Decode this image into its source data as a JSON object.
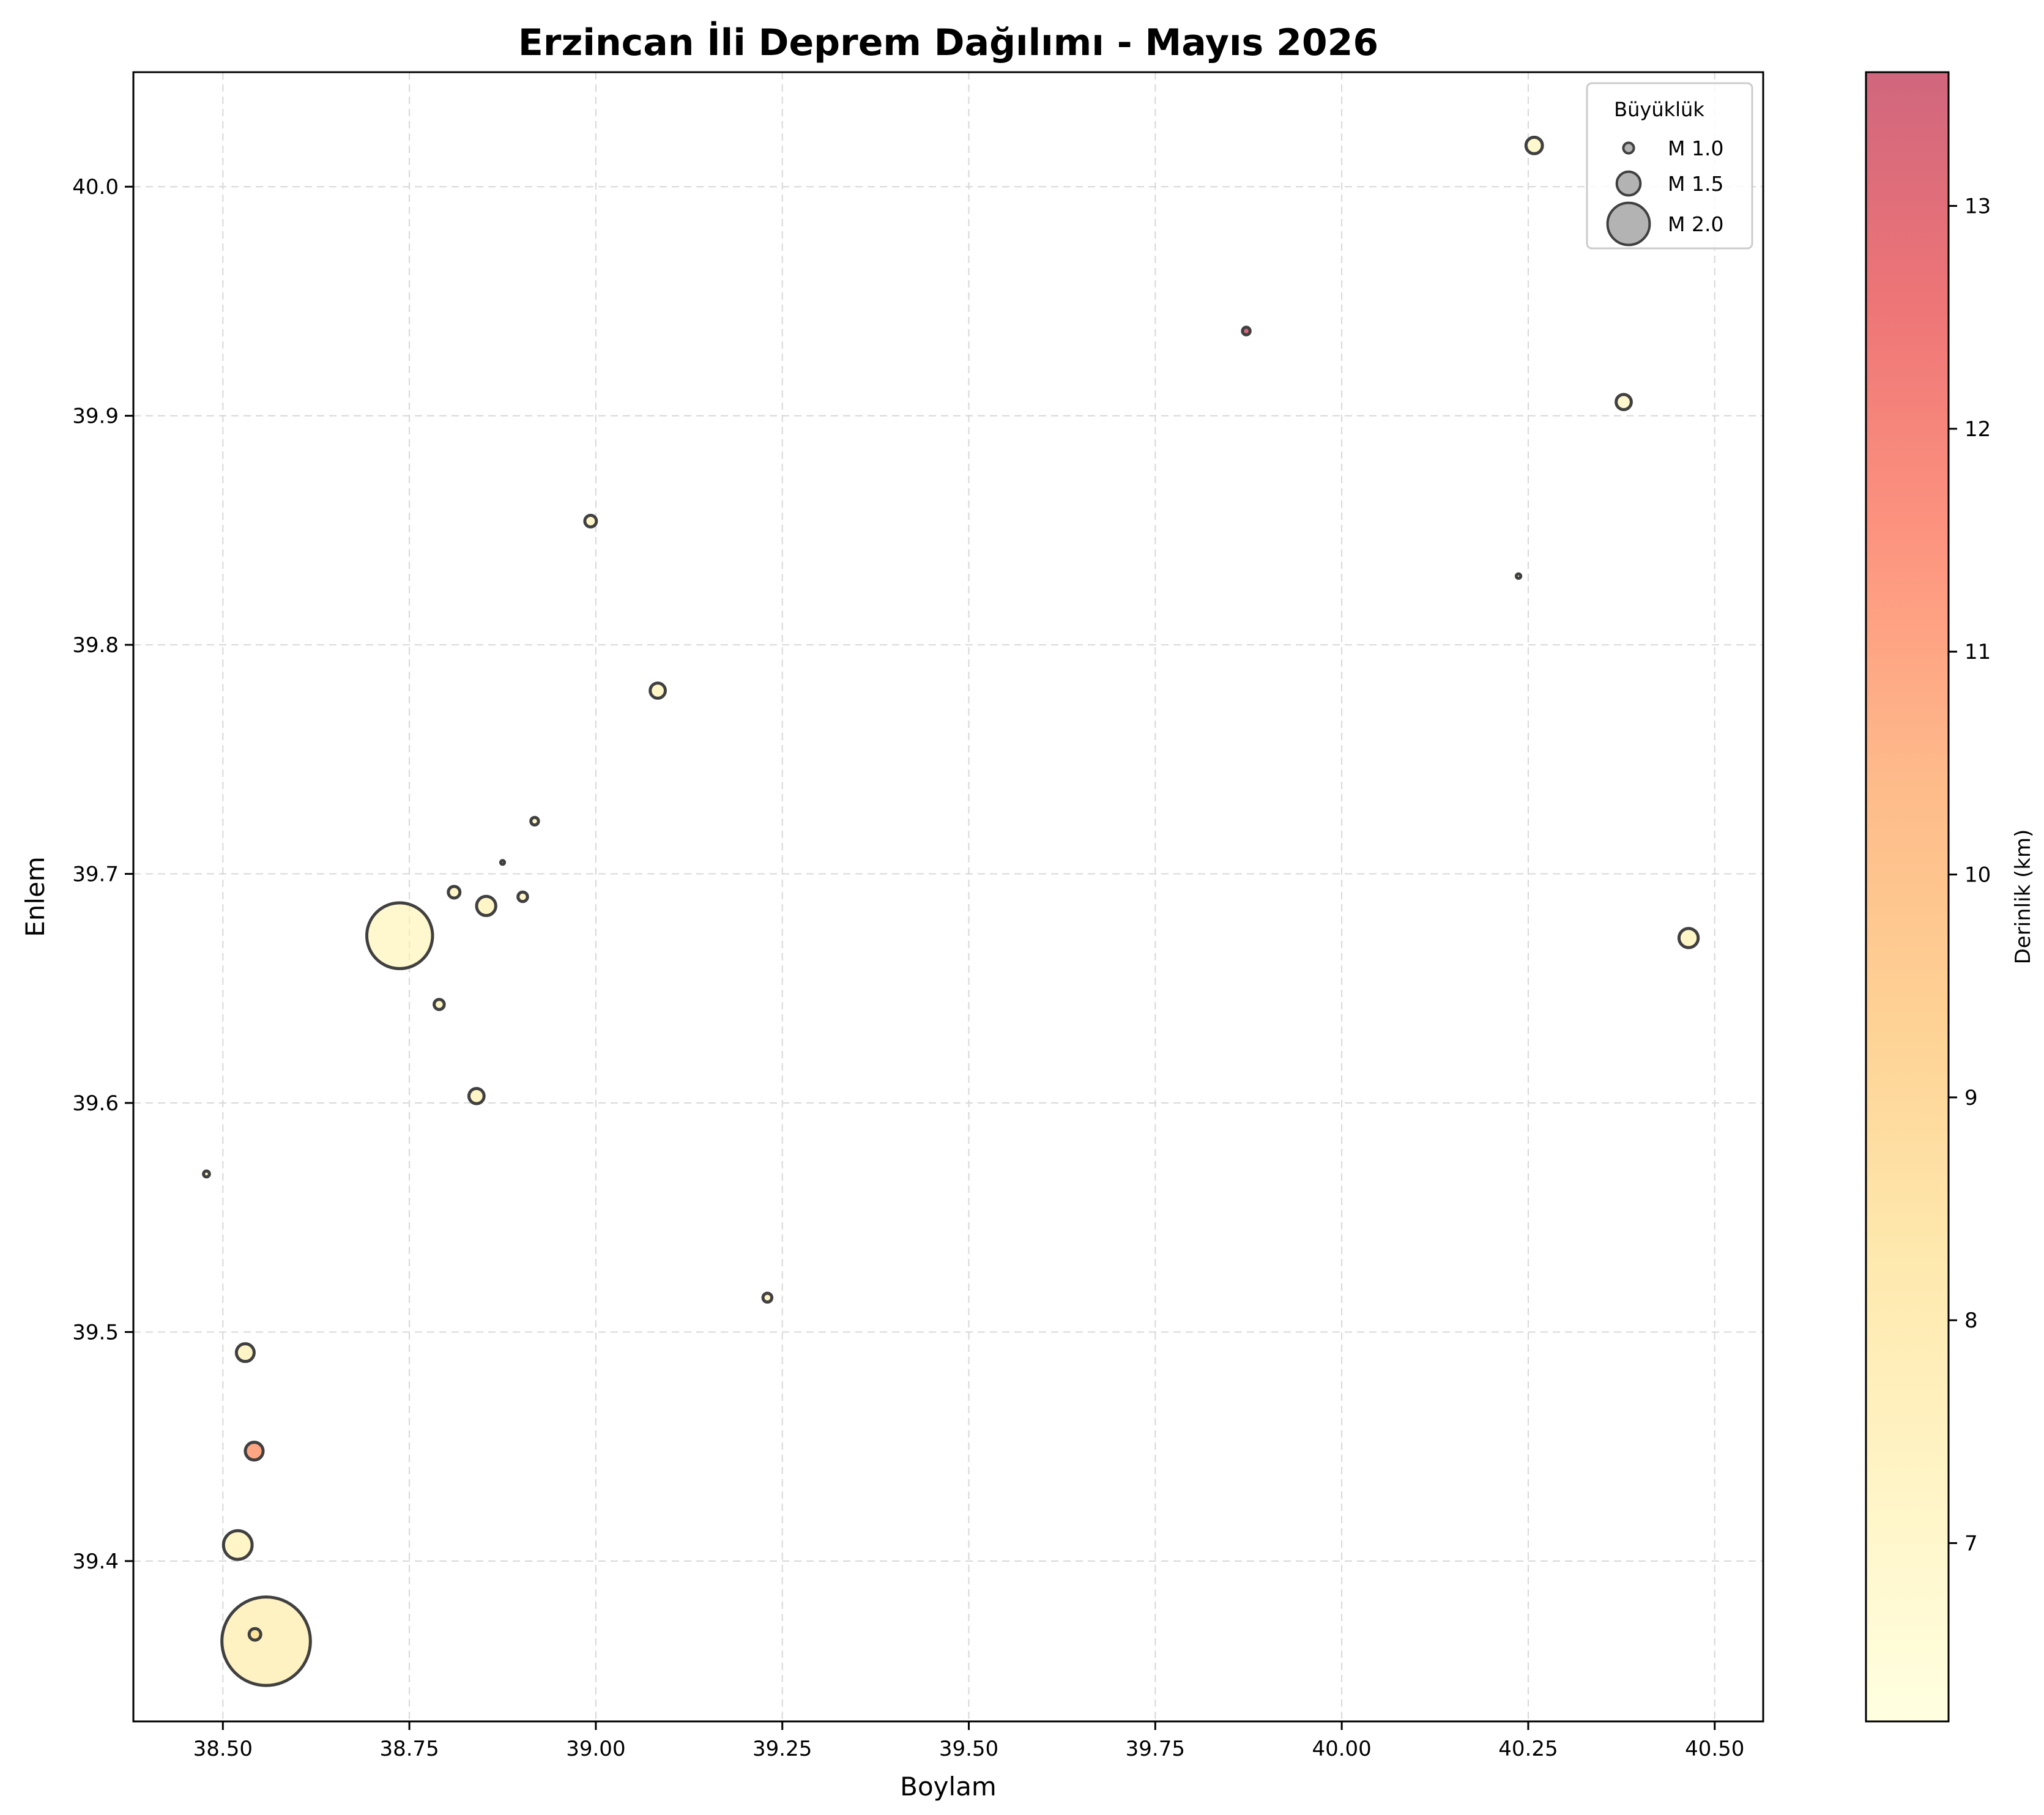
{
  "chart_data": {
    "type": "scatter",
    "title": "Erzincan İli Deprem Dağılımı - Mayıs 2026",
    "xlabel": "Boylam",
    "ylabel": "Enlem",
    "xlim": [
      38.38,
      40.565
    ],
    "ylim": [
      39.33,
      40.05
    ],
    "xticks": [
      38.5,
      38.75,
      39.0,
      39.25,
      39.5,
      39.75,
      40.0,
      40.25,
      40.5
    ],
    "xtick_labels": [
      "38.50",
      "38.75",
      "39.00",
      "39.25",
      "39.50",
      "39.75",
      "40.00",
      "40.25",
      "40.50"
    ],
    "yticks": [
      39.4,
      39.5,
      39.6,
      39.7,
      39.8,
      39.9,
      40.0
    ],
    "ytick_labels": [
      "39.4",
      "39.5",
      "39.6",
      "39.7",
      "39.8",
      "39.9",
      "40.0"
    ],
    "grid": true,
    "size_meaning": "magnitude",
    "color_meaning": "depth_km",
    "points": [
      {
        "x": 38.558,
        "y": 39.365,
        "magnitude": 2.9,
        "depth": 7.4
      },
      {
        "x": 38.737,
        "y": 39.673,
        "magnitude": 2.5,
        "depth": 6.9
      },
      {
        "x": 38.52,
        "y": 39.407,
        "magnitude": 1.65,
        "depth": 7.2
      },
      {
        "x": 40.465,
        "y": 39.672,
        "magnitude": 1.35,
        "depth": 7.2
      },
      {
        "x": 38.853,
        "y": 39.686,
        "magnitude": 1.35,
        "depth": 7.2
      },
      {
        "x": 38.53,
        "y": 39.491,
        "magnitude": 1.3,
        "depth": 7.3
      },
      {
        "x": 38.542,
        "y": 39.448,
        "magnitude": 1.3,
        "depth": 11.0
      },
      {
        "x": 40.258,
        "y": 40.018,
        "magnitude": 1.25,
        "depth": 7.0
      },
      {
        "x": 39.083,
        "y": 39.78,
        "magnitude": 1.2,
        "depth": 7.2
      },
      {
        "x": 38.84,
        "y": 39.603,
        "magnitude": 1.2,
        "depth": 7.2
      },
      {
        "x": 40.378,
        "y": 39.906,
        "magnitude": 1.2,
        "depth": 7.0
      },
      {
        "x": 38.543,
        "y": 39.368,
        "magnitude": 1.05,
        "depth": 8.2
      },
      {
        "x": 38.81,
        "y": 39.692,
        "magnitude": 1.05,
        "depth": 7.2
      },
      {
        "x": 38.993,
        "y": 39.854,
        "magnitude": 1.05,
        "depth": 7.2
      },
      {
        "x": 38.79,
        "y": 39.643,
        "magnitude": 0.98,
        "depth": 7.2
      },
      {
        "x": 38.902,
        "y": 39.69,
        "magnitude": 0.95,
        "depth": 7.2
      },
      {
        "x": 39.23,
        "y": 39.515,
        "magnitude": 0.92,
        "depth": 7.2
      },
      {
        "x": 39.872,
        "y": 39.937,
        "magnitude": 0.85,
        "depth": 13.5
      },
      {
        "x": 38.918,
        "y": 39.723,
        "magnitude": 0.85,
        "depth": 7.2
      },
      {
        "x": 38.478,
        "y": 39.569,
        "magnitude": 0.75,
        "depth": 7.2
      },
      {
        "x": 40.237,
        "y": 39.83,
        "magnitude": 0.65,
        "depth": 7.0
      },
      {
        "x": 38.875,
        "y": 39.705,
        "magnitude": 0.6,
        "depth": 7.2
      }
    ],
    "legend": {
      "title": "Büyüklük",
      "placement": "top-right",
      "entries": [
        {
          "label": "M 1.0",
          "magnitude": 1.0
        },
        {
          "label": "M 1.5",
          "magnitude": 1.5
        },
        {
          "label": "M 2.0",
          "magnitude": 2.0
        }
      ]
    },
    "colorbar": {
      "label": "Derinlik (km)",
      "range": [
        6.2,
        13.6
      ],
      "ticks": [
        7,
        8,
        9,
        10,
        11,
        12,
        13
      ],
      "tick_labels": [
        "7",
        "8",
        "9",
        "10",
        "11",
        "12",
        "13"
      ],
      "colormap": "YlOrRd-like",
      "color_stops": [
        "#ffffcc",
        "#ffeda0",
        "#fed976",
        "#feb24c",
        "#fd8d3c",
        "#fc4e2a",
        "#e31a1c",
        "#b10026"
      ],
      "alpha": 0.6
    },
    "colors": {
      "marker_edge": "#404040",
      "legend_marker": "#a0a0a0",
      "grid": "#d8d8d8"
    }
  }
}
